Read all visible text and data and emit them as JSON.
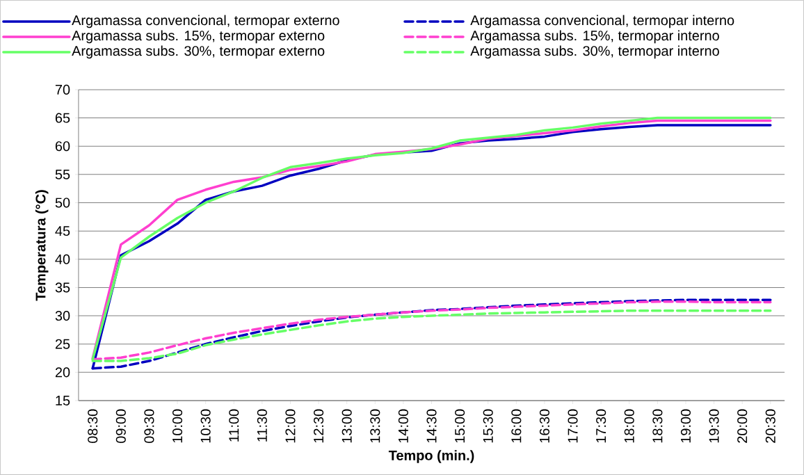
{
  "chart_data": {
    "type": "line",
    "xlabel": "Tempo (min.)",
    "ylabel": "Temperatura (°C)",
    "categories": [
      "08:30",
      "09:00",
      "09:30",
      "10:00",
      "10:30",
      "11:00",
      "11:30",
      "12:00",
      "12:30",
      "13:00",
      "13:30",
      "14:00",
      "14:30",
      "15:00",
      "15:30",
      "16:00",
      "16:30",
      "17:00",
      "17:30",
      "18:00",
      "18:30",
      "19:00",
      "19:30",
      "20:00",
      "20:30"
    ],
    "series": [
      {
        "name": "Argamassa convencional, termopar externo",
        "color": "#0000c0",
        "line_style": "solid",
        "values": [
          20.7,
          40.7,
          43.2,
          46.3,
          50.5,
          52.0,
          53.0,
          54.8,
          56.0,
          57.5,
          58.5,
          58.9,
          59.2,
          60.5,
          61.0,
          61.3,
          61.7,
          62.5,
          63.0,
          63.4,
          63.7,
          63.7,
          63.7,
          63.7,
          63.7
        ]
      },
      {
        "name": "Argamassa convencional, termopar interno",
        "color": "#0000c0",
        "line_style": "dashed",
        "values": [
          20.7,
          21.0,
          22.0,
          23.5,
          25.0,
          26.2,
          27.3,
          28.2,
          29.0,
          29.7,
          30.2,
          30.6,
          31.0,
          31.2,
          31.5,
          31.8,
          32.0,
          32.2,
          32.4,
          32.6,
          32.7,
          32.8,
          32.8,
          32.8,
          32.8
        ]
      },
      {
        "name": "Argamassa subs. 15%, termopar externo",
        "color": "#ff3fcf",
        "line_style": "solid",
        "values": [
          22.5,
          42.6,
          46.0,
          50.5,
          52.3,
          53.7,
          54.5,
          55.8,
          56.5,
          57.3,
          58.6,
          59.0,
          59.5,
          60.3,
          61.3,
          61.8,
          62.3,
          62.8,
          63.5,
          64.1,
          64.5,
          64.5,
          64.5,
          64.5,
          64.5
        ]
      },
      {
        "name": "Argamassa subs. 15%, termopar interno",
        "color": "#ff3fcf",
        "line_style": "dashed",
        "values": [
          22.3,
          22.6,
          23.5,
          24.8,
          26.0,
          27.0,
          27.8,
          28.6,
          29.3,
          29.8,
          30.2,
          30.6,
          30.9,
          31.1,
          31.4,
          31.6,
          31.8,
          32.0,
          32.2,
          32.4,
          32.5,
          32.5,
          32.4,
          32.4,
          32.4
        ]
      },
      {
        "name": "Argamassa subs. 30%, termopar externo",
        "color": "#66ff66",
        "line_style": "solid",
        "values": [
          22.3,
          40.3,
          44.0,
          47.3,
          50.0,
          52.0,
          54.4,
          56.3,
          57.0,
          57.8,
          58.4,
          58.8,
          59.6,
          61.0,
          61.5,
          62.0,
          62.8,
          63.3,
          64.0,
          64.5,
          65.0,
          65.0,
          65.0,
          65.0,
          65.0
        ]
      },
      {
        "name": "Argamassa subs. 30%, termopar interno",
        "color": "#66ff66",
        "line_style": "dashed",
        "values": [
          22.0,
          22.0,
          22.5,
          23.3,
          24.8,
          25.8,
          26.7,
          27.5,
          28.3,
          29.0,
          29.5,
          29.8,
          30.0,
          30.2,
          30.4,
          30.5,
          30.6,
          30.7,
          30.8,
          30.9,
          30.9,
          30.9,
          30.9,
          30.9,
          30.9
        ]
      }
    ],
    "ylim": [
      15,
      70
    ],
    "yticks": [
      15,
      20,
      25,
      30,
      35,
      40,
      45,
      50,
      55,
      60,
      65,
      70
    ],
    "grid": "y",
    "legend": "top",
    "marker": "none"
  }
}
